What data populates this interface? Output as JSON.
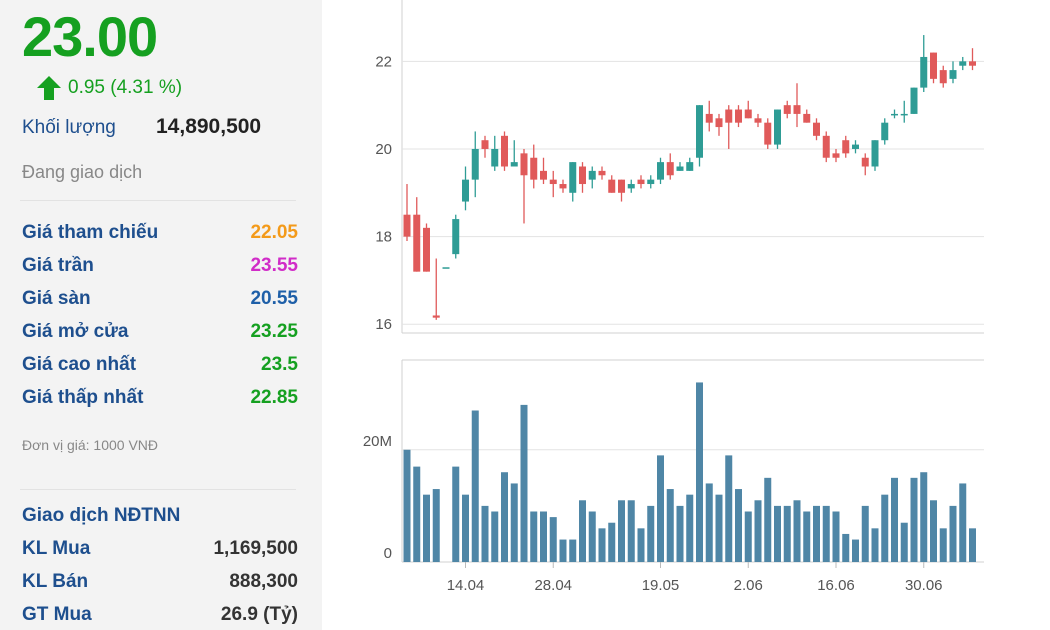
{
  "quote": {
    "price": "23.00",
    "change": "0.95 (4.31 %)",
    "volume_label": "Khối lượng",
    "volume_value": "14,890,500",
    "status": "Đang giao dịch"
  },
  "prices": [
    {
      "label": "Giá tham chiếu",
      "value": "22.05",
      "color": "#f39a1a"
    },
    {
      "label": "Giá trần",
      "value": "23.55",
      "color": "#d12cc8"
    },
    {
      "label": "Giá sàn",
      "value": "20.55",
      "color": "#1e5fa8"
    },
    {
      "label": "Giá mở cửa",
      "value": "23.25",
      "color": "#15a020"
    },
    {
      "label": "Giá cao nhất",
      "value": "23.5",
      "color": "#15a020"
    },
    {
      "label": "Giá thấp nhất",
      "value": "22.85",
      "color": "#15a020"
    }
  ],
  "unit_note": "Đơn vị giá: 1000 VNĐ",
  "foreign": {
    "title": "Giao dịch NĐTNN",
    "rows": [
      {
        "label": "KL Mua",
        "value": "1,169,500"
      },
      {
        "label": "KL Bán",
        "value": "888,300"
      },
      {
        "label": "GT Mua",
        "value": "26.9 (Tỷ)"
      }
    ]
  },
  "colors": {
    "up": "#2e9c95",
    "down": "#e05a5a",
    "volume": "#4f86a6",
    "grid": "#e3e3e3"
  },
  "icons": {
    "change_arrow": "arrow-up-icon"
  },
  "chart_data": {
    "type": "candlestick",
    "price_ticks": [
      "22",
      "20",
      "18",
      "16"
    ],
    "volume_ticks": [
      "20M",
      "0"
    ],
    "x_tick_labels": [
      "14.04",
      "28.04",
      "19.05",
      "2.06",
      "16.06",
      "30.06"
    ],
    "x_tick_index": [
      6,
      15,
      26,
      35,
      44,
      53
    ],
    "ylim": [
      15.8,
      23.4
    ],
    "volume_ylim": [
      0,
      36
    ],
    "candles": [
      {
        "o": 18.5,
        "c": 18.0,
        "h": 19.2,
        "l": 17.9
      },
      {
        "o": 18.5,
        "c": 17.2,
        "h": 18.9,
        "l": 17.2
      },
      {
        "o": 18.2,
        "c": 17.2,
        "h": 18.3,
        "l": 17.2
      },
      {
        "o": 16.2,
        "c": 16.15,
        "h": 17.5,
        "l": 16.1
      },
      {
        "o": 17.3,
        "c": 17.3,
        "h": 17.3,
        "l": 17.3
      },
      {
        "o": 17.6,
        "c": 18.4,
        "h": 18.5,
        "l": 17.5
      },
      {
        "o": 18.8,
        "c": 19.3,
        "h": 19.6,
        "l": 18.6
      },
      {
        "o": 19.3,
        "c": 20.0,
        "h": 20.4,
        "l": 18.9
      },
      {
        "o": 20.2,
        "c": 20.0,
        "h": 20.3,
        "l": 19.8
      },
      {
        "o": 19.6,
        "c": 20.0,
        "h": 20.3,
        "l": 19.5
      },
      {
        "o": 20.3,
        "c": 19.6,
        "h": 20.4,
        "l": 19.5
      },
      {
        "o": 19.6,
        "c": 19.7,
        "h": 20.2,
        "l": 19.6
      },
      {
        "o": 19.9,
        "c": 19.4,
        "h": 20.0,
        "l": 18.3
      },
      {
        "o": 19.8,
        "c": 19.3,
        "h": 20.1,
        "l": 19.1
      },
      {
        "o": 19.5,
        "c": 19.3,
        "h": 19.8,
        "l": 19.2
      },
      {
        "o": 19.3,
        "c": 19.2,
        "h": 19.5,
        "l": 18.9
      },
      {
        "o": 19.2,
        "c": 19.1,
        "h": 19.3,
        "l": 19.0
      },
      {
        "o": 19.0,
        "c": 19.7,
        "h": 19.7,
        "l": 18.8
      },
      {
        "o": 19.6,
        "c": 19.2,
        "h": 19.7,
        "l": 19.0
      },
      {
        "o": 19.3,
        "c": 19.5,
        "h": 19.6,
        "l": 19.1
      },
      {
        "o": 19.5,
        "c": 19.4,
        "h": 19.6,
        "l": 19.3
      },
      {
        "o": 19.3,
        "c": 19.0,
        "h": 19.4,
        "l": 19.0
      },
      {
        "o": 19.3,
        "c": 19.0,
        "h": 19.3,
        "l": 18.8
      },
      {
        "o": 19.1,
        "c": 19.2,
        "h": 19.3,
        "l": 19.0
      },
      {
        "o": 19.3,
        "c": 19.2,
        "h": 19.4,
        "l": 19.1
      },
      {
        "o": 19.2,
        "c": 19.3,
        "h": 19.4,
        "l": 19.1
      },
      {
        "o": 19.3,
        "c": 19.7,
        "h": 19.8,
        "l": 19.2
      },
      {
        "o": 19.7,
        "c": 19.4,
        "h": 19.9,
        "l": 19.3
      },
      {
        "o": 19.5,
        "c": 19.6,
        "h": 19.7,
        "l": 19.5
      },
      {
        "o": 19.5,
        "c": 19.7,
        "h": 19.8,
        "l": 19.5
      },
      {
        "o": 19.8,
        "c": 21.0,
        "h": 21.0,
        "l": 19.6
      },
      {
        "o": 20.8,
        "c": 20.6,
        "h": 21.1,
        "l": 20.4
      },
      {
        "o": 20.7,
        "c": 20.5,
        "h": 20.8,
        "l": 20.3
      },
      {
        "o": 20.9,
        "c": 20.6,
        "h": 21.0,
        "l": 20.0
      },
      {
        "o": 20.9,
        "c": 20.6,
        "h": 21.0,
        "l": 20.5
      },
      {
        "o": 20.9,
        "c": 20.7,
        "h": 21.1,
        "l": 20.7
      },
      {
        "o": 20.7,
        "c": 20.6,
        "h": 20.8,
        "l": 20.5
      },
      {
        "o": 20.6,
        "c": 20.1,
        "h": 20.7,
        "l": 20.0
      },
      {
        "o": 20.1,
        "c": 20.9,
        "h": 20.9,
        "l": 20.0
      },
      {
        "o": 21.0,
        "c": 20.8,
        "h": 21.1,
        "l": 20.7
      },
      {
        "o": 21.0,
        "c": 20.8,
        "h": 21.5,
        "l": 20.5
      },
      {
        "o": 20.8,
        "c": 20.6,
        "h": 20.9,
        "l": 20.6
      },
      {
        "o": 20.6,
        "c": 20.3,
        "h": 20.7,
        "l": 20.2
      },
      {
        "o": 20.3,
        "c": 19.8,
        "h": 20.4,
        "l": 19.7
      },
      {
        "o": 19.9,
        "c": 19.8,
        "h": 20.0,
        "l": 19.7
      },
      {
        "o": 20.2,
        "c": 19.9,
        "h": 20.3,
        "l": 19.8
      },
      {
        "o": 20.0,
        "c": 20.1,
        "h": 20.2,
        "l": 19.9
      },
      {
        "o": 19.8,
        "c": 19.6,
        "h": 19.9,
        "l": 19.4
      },
      {
        "o": 19.6,
        "c": 20.2,
        "h": 20.2,
        "l": 19.5
      },
      {
        "o": 20.2,
        "c": 20.6,
        "h": 20.7,
        "l": 20.1
      },
      {
        "o": 20.8,
        "c": 20.8,
        "h": 20.9,
        "l": 20.7
      },
      {
        "o": 20.8,
        "c": 20.8,
        "h": 21.1,
        "l": 20.6
      },
      {
        "o": 20.8,
        "c": 21.4,
        "h": 21.4,
        "l": 20.8
      },
      {
        "o": 21.4,
        "c": 22.1,
        "h": 22.6,
        "l": 21.3
      },
      {
        "o": 22.2,
        "c": 21.6,
        "h": 22.2,
        "l": 21.5
      },
      {
        "o": 21.8,
        "c": 21.5,
        "h": 21.9,
        "l": 21.4
      },
      {
        "o": 21.6,
        "c": 21.8,
        "h": 22.0,
        "l": 21.5
      },
      {
        "o": 21.9,
        "c": 22.0,
        "h": 22.1,
        "l": 21.8
      },
      {
        "o": 22.0,
        "c": 21.9,
        "h": 22.3,
        "l": 21.8
      }
    ],
    "volume": [
      20,
      17,
      12,
      13,
      0,
      17,
      12,
      27,
      10,
      9,
      16,
      14,
      28,
      9,
      9,
      8,
      4,
      4,
      11,
      9,
      6,
      7,
      11,
      11,
      6,
      10,
      19,
      13,
      10,
      12,
      32,
      14,
      12,
      19,
      13,
      9,
      11,
      15,
      10,
      10,
      11,
      9,
      10,
      10,
      9,
      5,
      4,
      10,
      6,
      12,
      15,
      7,
      15,
      16,
      11,
      6,
      10,
      14,
      6
    ]
  }
}
